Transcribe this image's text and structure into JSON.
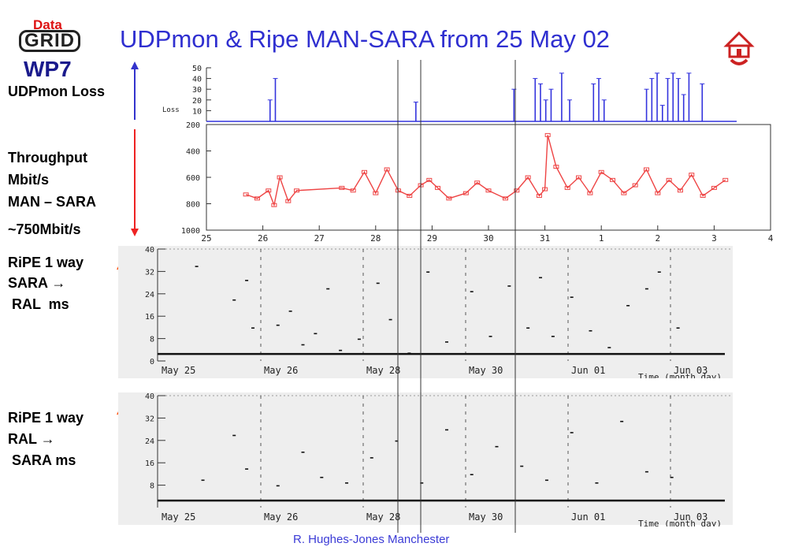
{
  "title": "UDPmon & Ripe MAN-SARA from 25 May 02",
  "logo": {
    "top": "Data",
    "middle": "GRID",
    "bottom": "WP7"
  },
  "left_labels": {
    "loss": "UDPmon Loss",
    "throughput": [
      "Throughput",
      "Mbit/s",
      "MAN – SARA",
      "~750Mbit/s"
    ],
    "ripe1": [
      "RiPE 1 way",
      "SARA →",
      " RAL  ms"
    ],
    "ripe2": [
      "RiPE 1 way",
      "RAL →",
      " SARA ms"
    ]
  },
  "footer": "R. Hughes-Jones  Manchester",
  "colors": {
    "title": "#2f2fd0",
    "loss": "#3333dd",
    "throughput": "#ee4444",
    "arrow_blue": "#3333cc",
    "arrow_red": "#ee2222",
    "ripe_arrow": "#ff5511"
  },
  "chart_data": [
    {
      "type": "line",
      "name": "UDPmon Loss",
      "x_ticks": [],
      "y_ticks": [
        "50",
        "40",
        "30",
        "20",
        "10"
      ],
      "ylim": [
        0,
        50
      ],
      "legend": [
        "Loss"
      ],
      "x": [
        25.8,
        26.1,
        26.2,
        26.3,
        26.4,
        26.6,
        27.5,
        28.3,
        28.8,
        28.95,
        29.1,
        30.2,
        30.4,
        30.8,
        31.0,
        31.2,
        31.3,
        31.4,
        31.5,
        31.6,
        31.7,
        31.85,
        32.2,
        32.3,
        32.4,
        32.5,
        32.9,
        33.3,
        33.4,
        33.5,
        33.6,
        33.7,
        33.8,
        33.9,
        34.0,
        34.1,
        34.2,
        34.35,
        35.0
      ],
      "values": [
        0,
        0,
        20,
        40,
        0,
        0,
        0,
        0,
        0,
        18,
        0,
        0,
        0,
        30,
        0,
        40,
        35,
        20,
        30,
        0,
        45,
        20,
        0,
        35,
        40,
        20,
        0,
        30,
        40,
        45,
        15,
        40,
        45,
        40,
        25,
        45,
        0,
        35,
        0
      ]
    },
    {
      "type": "line",
      "name": "Throughput",
      "x_ticks": [
        "25",
        "26",
        "27",
        "28",
        "29",
        "30",
        "31",
        "1",
        "2",
        "3",
        "4"
      ],
      "y_ticks": [
        "200",
        "400",
        "600",
        "800",
        "1000"
      ],
      "ylim": [
        200,
        1000
      ],
      "y_inverted": true,
      "x": [
        25.7,
        25.9,
        26.1,
        26.2,
        26.3,
        26.45,
        26.6,
        27.4,
        27.6,
        27.8,
        28.0,
        28.2,
        28.4,
        28.6,
        28.8,
        28.95,
        29.1,
        29.3,
        29.6,
        29.8,
        30.0,
        30.3,
        30.5,
        30.7,
        30.9,
        31.0,
        31.05,
        31.2,
        31.4,
        31.6,
        31.8,
        32.0,
        32.2,
        32.4,
        32.6,
        32.8,
        33.0,
        33.2,
        33.4,
        33.6,
        33.8,
        34.0,
        34.2
      ],
      "values": [
        730,
        760,
        700,
        810,
        600,
        780,
        700,
        680,
        700,
        560,
        720,
        540,
        700,
        740,
        660,
        620,
        680,
        760,
        720,
        640,
        700,
        760,
        700,
        600,
        740,
        690,
        280,
        520,
        680,
        600,
        720,
        560,
        620,
        720,
        660,
        540,
        720,
        620,
        700,
        580,
        740,
        680,
        620
      ]
    },
    {
      "type": "scatter",
      "name": "RiPE SARA to RAL",
      "x_ticks": [
        "May 25",
        "May 26",
        "May 28",
        "May 30",
        "Jun 01",
        "Jun 03"
      ],
      "y_ticks": [
        "40",
        "32",
        "24",
        "16",
        "8",
        "0"
      ],
      "ylim": [
        0,
        40
      ],
      "xlabel": "Time (month day)",
      "x": [
        25.6,
        26.2,
        26.4,
        26.5,
        26.9,
        27.1,
        27.3,
        27.5,
        27.7,
        27.9,
        28.2,
        28.5,
        28.7,
        29.0,
        29.3,
        29.6,
        30.0,
        30.3,
        30.6,
        30.9,
        31.1,
        31.3,
        31.6,
        31.9,
        32.2,
        32.5,
        32.8,
        33.0,
        33.3
      ],
      "values": [
        34,
        22,
        29,
        12,
        13,
        18,
        6,
        10,
        26,
        4,
        8,
        28,
        15,
        3,
        32,
        7,
        25,
        9,
        27,
        12,
        30,
        9,
        23,
        11,
        5,
        20,
        26,
        32,
        12
      ]
    },
    {
      "type": "scatter",
      "name": "RiPE RAL to SARA",
      "x_ticks": [
        "May 25",
        "May 26",
        "May 28",
        "May 30",
        "Jun 01",
        "Jun 03"
      ],
      "y_ticks": [
        "40",
        "32",
        "24",
        "16",
        "8"
      ],
      "ylim": [
        0,
        40
      ],
      "xlabel": "Time (month day)",
      "x": [
        25.7,
        26.2,
        26.4,
        26.9,
        27.3,
        27.6,
        28.0,
        28.4,
        28.8,
        29.2,
        29.6,
        30.0,
        30.4,
        30.8,
        31.2,
        31.6,
        32.0,
        32.4,
        32.8,
        33.2
      ],
      "values": [
        10,
        26,
        14,
        8,
        20,
        11,
        9,
        18,
        24,
        9,
        28,
        12,
        22,
        15,
        10,
        27,
        9,
        31,
        13,
        11
      ]
    }
  ]
}
